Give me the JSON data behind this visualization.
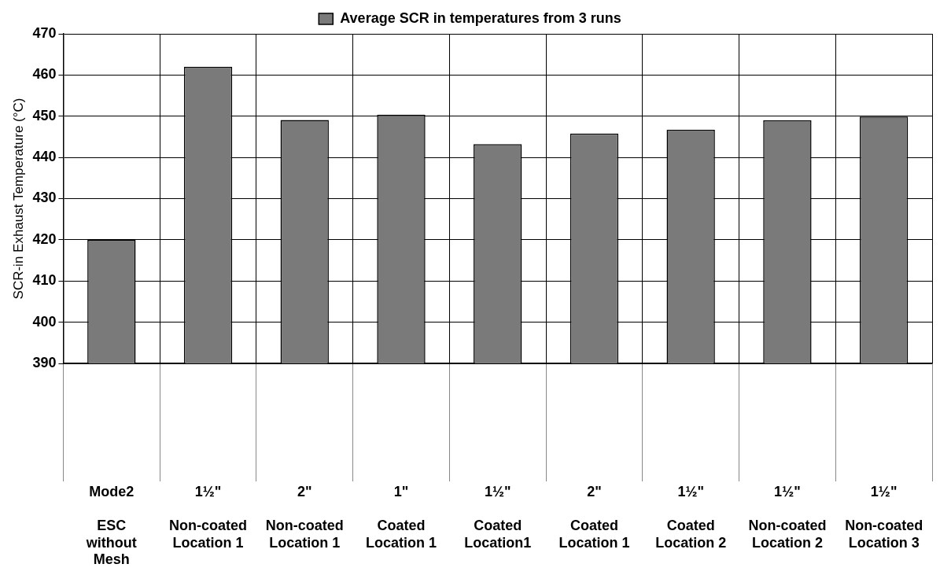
{
  "chart_data": {
    "type": "bar",
    "ylabel": "SCR-in Exhaust Temperature (°C)",
    "categories": [
      "Mode2\nESC without Mesh",
      "1½\"\nNon-coated Location 1",
      "2\"\nNon-coated Location 1",
      "1\"\nCoated Location 1",
      "1½\"\nCoated Location1",
      "2\"\nCoated Location 1",
      "1½\"\nCoated Location 2",
      "1½\"\nNon-coated Location 2",
      "1½\"\nNon-coated Location 3"
    ],
    "series": [
      {
        "name": "Average SCR in temperatures from 3 runs",
        "color": "#7a7a7a",
        "values": [
          420,
          462,
          449.1,
          450.4,
          443.2,
          445.8,
          446.7,
          449,
          449.9
        ]
      }
    ],
    "ylim": [
      390,
      470
    ],
    "yticks": [
      390,
      400,
      410,
      420,
      430,
      440,
      450,
      460,
      470
    ],
    "grid": true,
    "legend": "top"
  }
}
